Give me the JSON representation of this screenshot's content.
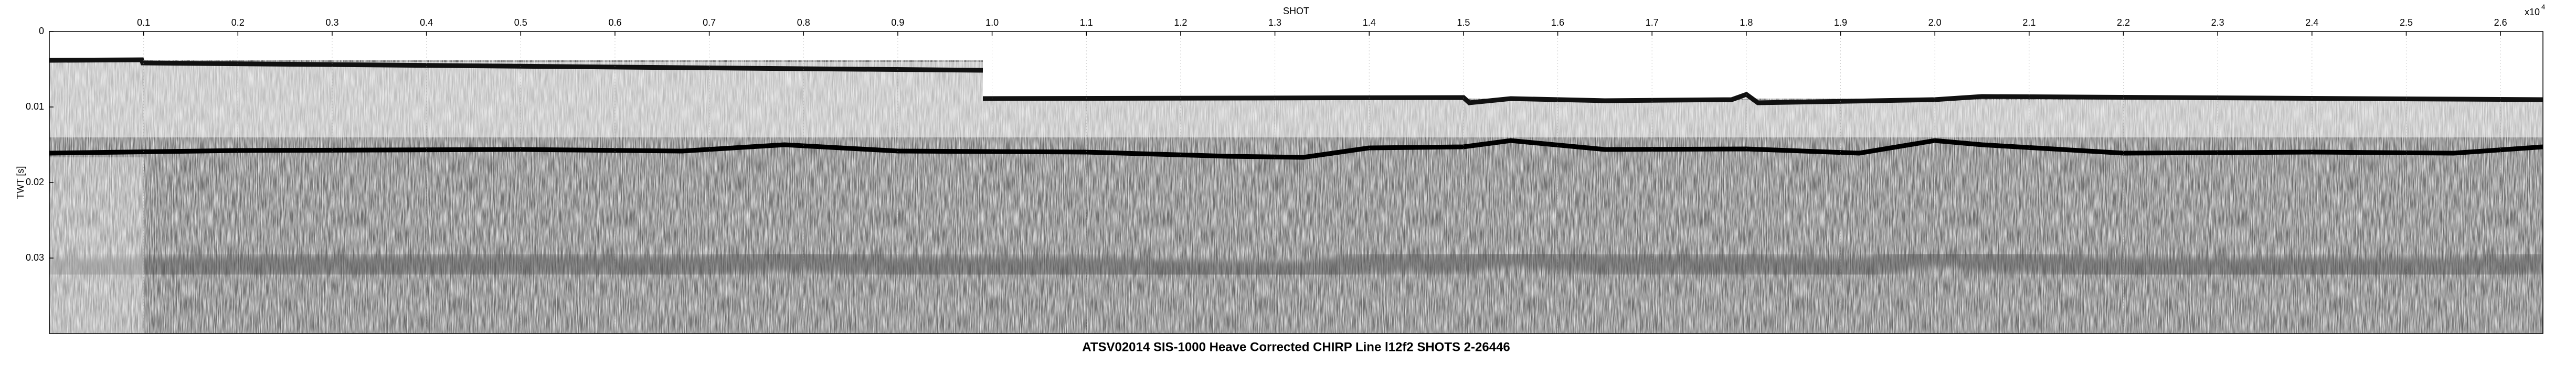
{
  "chart_data": {
    "type": "seismic",
    "title": "ATSV02014 SIS-1000 Heave Corrected CHIRP Line l12f2 SHOTS 2-26446",
    "xlabel": "SHOT",
    "ylabel": "TWT [s]",
    "x_exponent_base": "x10",
    "x_exponent": "4",
    "xlim": [
      0,
      2.645
    ],
    "xticks": [
      0.1,
      0.2,
      0.3,
      0.4,
      0.5,
      0.6,
      0.7,
      0.8,
      0.9,
      {
        "value": 1,
        "label": "1.0"
      },
      1.1,
      1.2,
      1.3,
      1.4,
      1.5,
      1.6,
      1.7,
      1.8,
      1.9,
      {
        "value": 2,
        "label": "2.0"
      },
      2.1,
      2.2,
      2.3,
      2.4,
      2.5,
      2.6
    ],
    "ylim": [
      0,
      0.04
    ],
    "y_reversed": true,
    "yticks": [
      0,
      0.01,
      0.02,
      0.03
    ],
    "grid": true
  }
}
